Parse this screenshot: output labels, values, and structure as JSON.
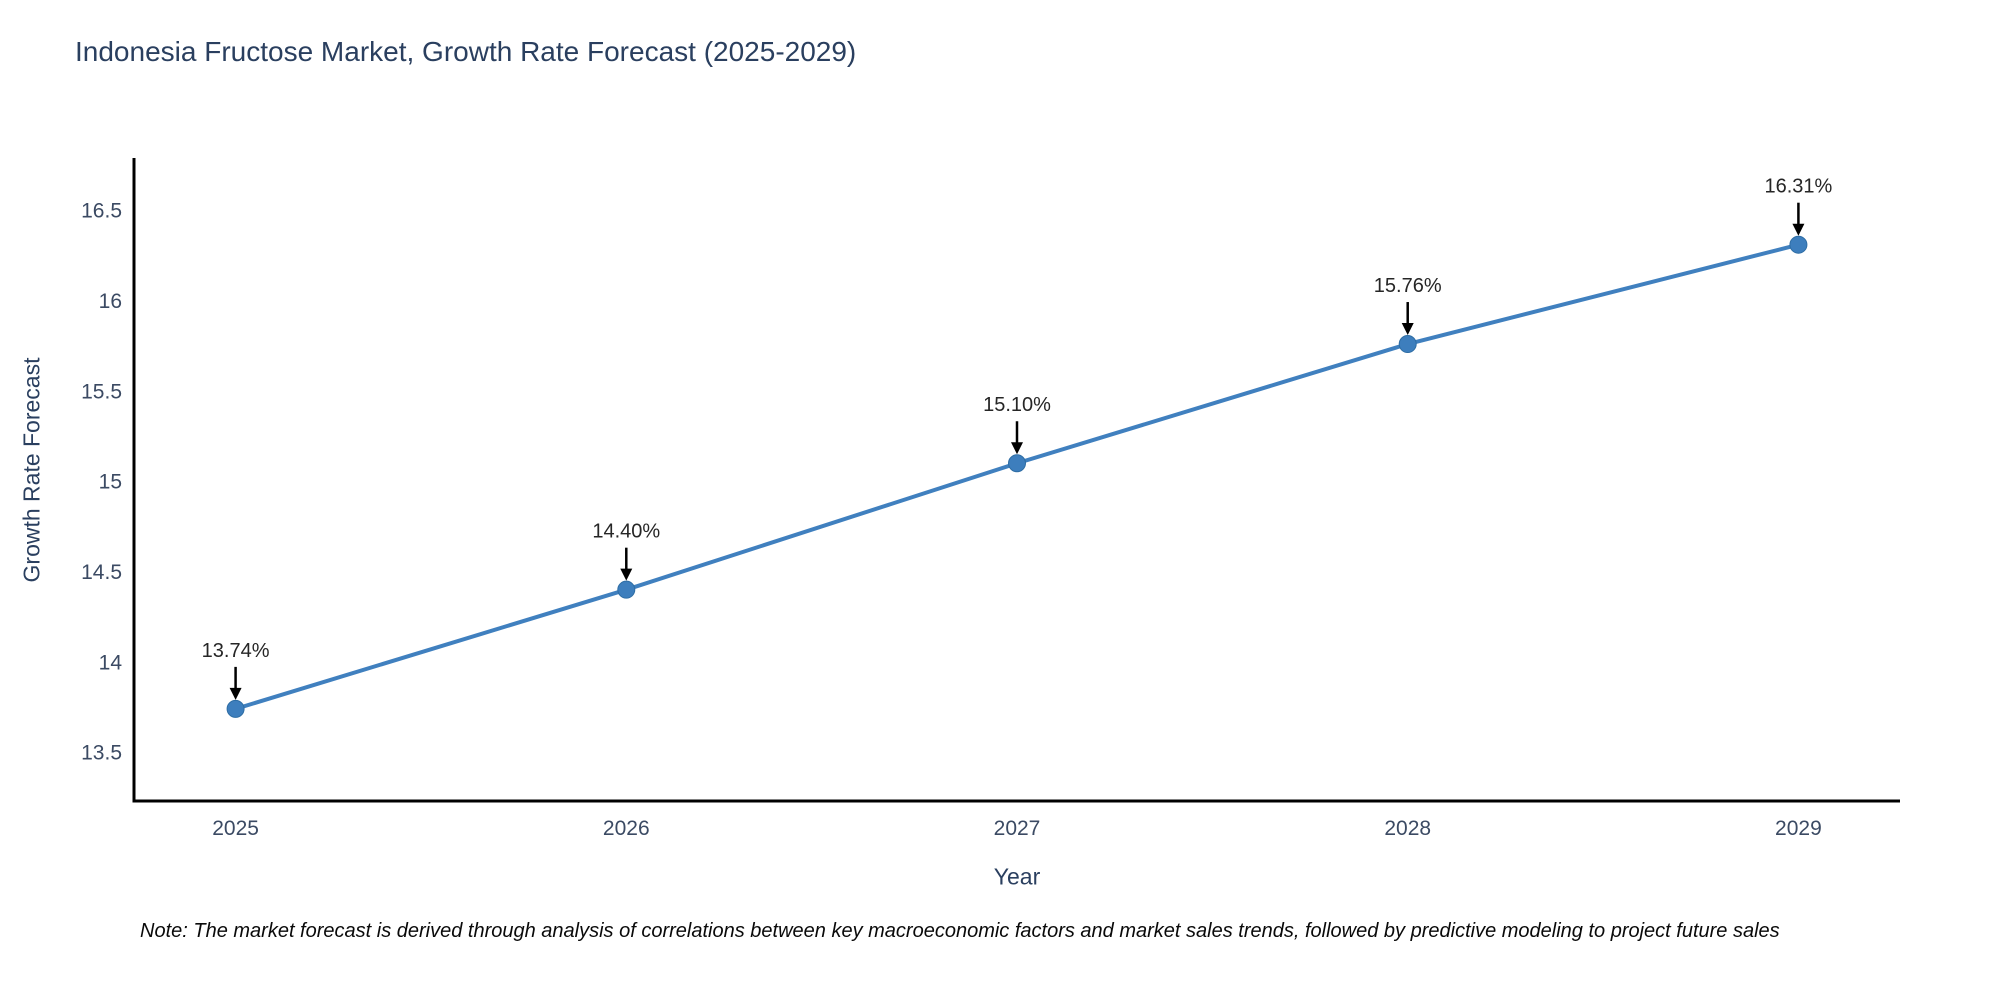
{
  "header": {
    "title": "Indonesia Fructose Market, Growth Rate Forecast (2025-2029)"
  },
  "chart_data": {
    "type": "line",
    "title": "Indonesia Fructose Market, Growth Rate Forecast (2025-2029)",
    "xlabel": "Year",
    "ylabel": "Growth Rate Forecast",
    "x": [
      2025,
      2026,
      2027,
      2028,
      2029
    ],
    "categories": [
      "2025",
      "2026",
      "2027",
      "2028",
      "2029"
    ],
    "values": [
      13.74,
      14.4,
      15.1,
      15.76,
      16.31
    ],
    "point_labels": [
      "13.74%",
      "14.40%",
      "15.10%",
      "15.76%",
      "16.31%"
    ],
    "yticks": [
      13.5,
      14,
      14.5,
      15,
      15.5,
      16,
      16.5
    ],
    "ytick_labels": [
      "13.5",
      "14",
      "14.5",
      "15",
      "15.5",
      "16",
      "16.5"
    ],
    "ylim": [
      13.23,
      16.79
    ],
    "xlim": [
      2024.74,
      2029.26
    ],
    "grid": false,
    "legend_position": "none",
    "line_color": "#4080bf",
    "marker_color": "#3d7ebd",
    "marker_edge_color": "#2e6da4",
    "axis_color": "#000000",
    "annotation_arrow_color": "#000000"
  },
  "footer": {
    "note": "Note: The market forecast is derived through analysis of correlations between key macroeconomic factors and market sales trends, followed by predictive modeling to project future sales"
  }
}
